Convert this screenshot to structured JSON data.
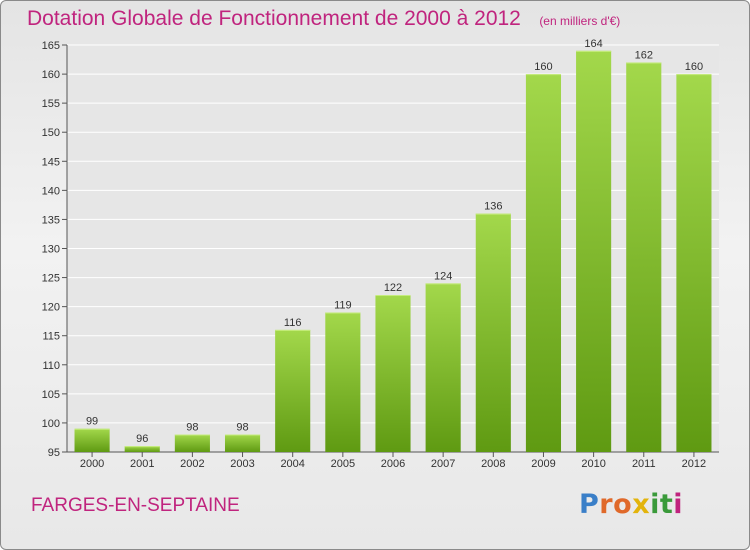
{
  "title": "Dotation Globale de Fonctionnement de 2000 à 2012",
  "subtitle": "(en milliers d'€)",
  "town": "FARGES-EN-SEPTAINE",
  "logo": {
    "letters": [
      "P",
      "r",
      "o",
      "x",
      "i",
      "t",
      "i"
    ],
    "colors": [
      "#3a7fc8",
      "#e0692a",
      "#e0692a",
      "#e3b40c",
      "#3a9a3a",
      "#3a9a3a",
      "#c0247e"
    ]
  },
  "colors": {
    "bar_light": "#a3d84b",
    "bar_dark": "#5f9a12",
    "text_accent": "#c0247e",
    "grid": "#ffffff"
  },
  "chart_data": {
    "type": "bar",
    "categories": [
      "2000",
      "2001",
      "2002",
      "2003",
      "2004",
      "2005",
      "2006",
      "2007",
      "2008",
      "2009",
      "2010",
      "2011",
      "2012"
    ],
    "values": [
      99,
      96,
      98,
      98,
      116,
      119,
      122,
      124,
      136,
      160,
      164,
      162,
      160
    ],
    "title": "Dotation Globale de Fonctionnement de 2000 à 2012",
    "subtitle": "(en milliers d'€)",
    "xlabel": "",
    "ylabel": "",
    "ylim": [
      95,
      165
    ],
    "yticks": [
      95,
      100,
      105,
      110,
      115,
      120,
      125,
      130,
      135,
      140,
      145,
      150,
      155,
      160,
      165
    ],
    "grid": true,
    "legend": "none"
  }
}
